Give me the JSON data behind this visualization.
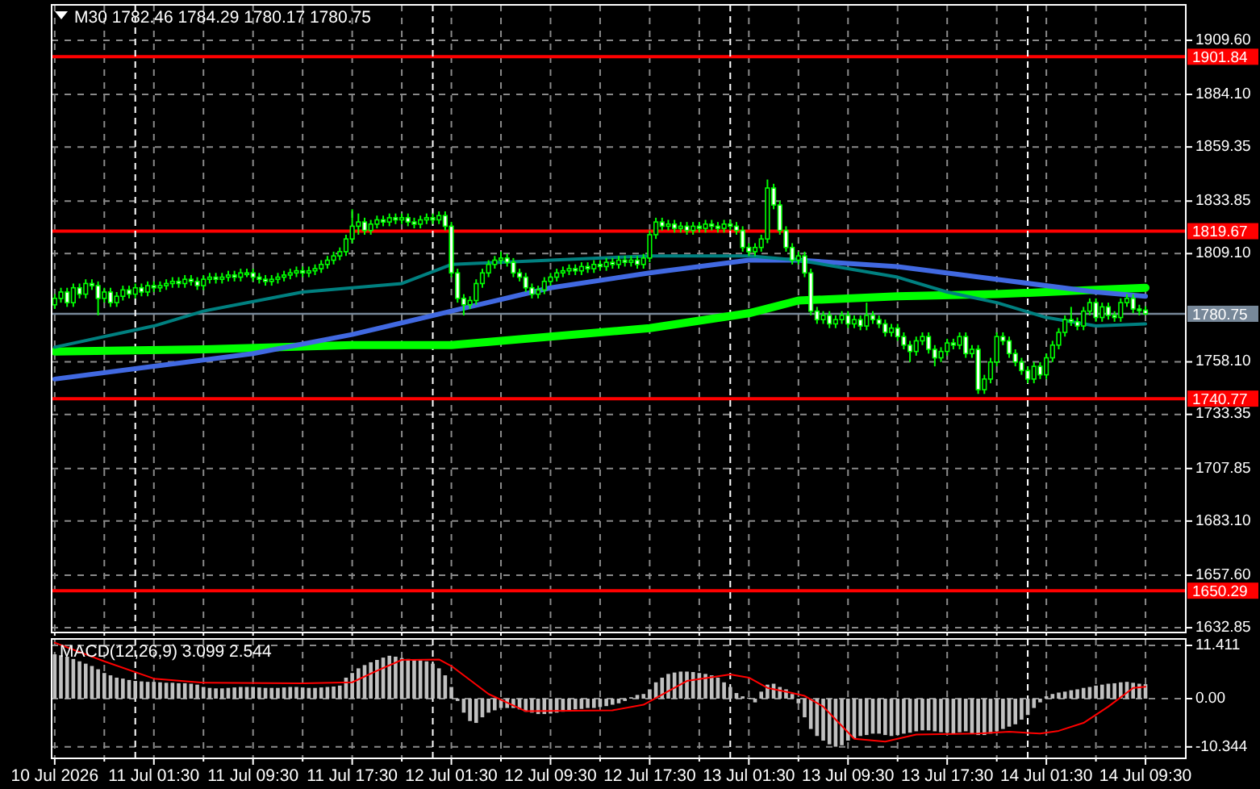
{
  "chart_data": [
    {
      "type": "candlestick",
      "title": "M30  1782.46 1784.29 1780.17 1780.75",
      "color": "#00ff00",
      "x": [
        "2026-07-10T17:30",
        "2026-07-10T18:00",
        "2026-07-10T18:30",
        "2026-07-10T19:00",
        "2026-07-10T19:30",
        "2026-07-10T20:00",
        "2026-07-10T20:30",
        "2026-07-10T21:00",
        "2026-07-10T21:30",
        "2026-07-10T22:00",
        "2026-07-10T22:30",
        "2026-07-10T23:00",
        "2026-07-10T23:30",
        "2026-07-11T00:00",
        "2026-07-11T00:30",
        "2026-07-11T01:00",
        "2026-07-11T01:30",
        "2026-07-11T02:00",
        "2026-07-11T02:30",
        "2026-07-11T03:00",
        "2026-07-11T03:30",
        "2026-07-11T04:00",
        "2026-07-11T04:30",
        "2026-07-11T05:00",
        "2026-07-11T05:30",
        "2026-07-11T06:00",
        "2026-07-11T06:30",
        "2026-07-11T07:00",
        "2026-07-11T07:30",
        "2026-07-11T08:00",
        "2026-07-11T08:30",
        "2026-07-11T09:00",
        "2026-07-11T09:30",
        "2026-07-11T10:00",
        "2026-07-11T10:30",
        "2026-07-11T11:00",
        "2026-07-11T11:30",
        "2026-07-11T12:00",
        "2026-07-11T12:30",
        "2026-07-11T13:00",
        "2026-07-11T13:30",
        "2026-07-11T14:00",
        "2026-07-11T14:30",
        "2026-07-11T15:00",
        "2026-07-11T15:30",
        "2026-07-11T16:00",
        "2026-07-11T16:30",
        "2026-07-11T17:00",
        "2026-07-11T17:30",
        "2026-07-11T18:00",
        "2026-07-11T18:30",
        "2026-07-11T19:00",
        "2026-07-11T19:30",
        "2026-07-11T20:00",
        "2026-07-11T20:30",
        "2026-07-11T21:00",
        "2026-07-11T21:30",
        "2026-07-11T22:00",
        "2026-07-11T22:30",
        "2026-07-11T23:00",
        "2026-07-11T23:30",
        "2026-07-12T00:00",
        "2026-07-12T00:30",
        "2026-07-12T01:00",
        "2026-07-12T01:30",
        "2026-07-12T02:00",
        "2026-07-12T02:30",
        "2026-07-12T03:00",
        "2026-07-12T03:30",
        "2026-07-12T04:00",
        "2026-07-12T04:30",
        "2026-07-12T05:00",
        "2026-07-12T05:30",
        "2026-07-12T06:00",
        "2026-07-12T06:30",
        "2026-07-12T07:00",
        "2026-07-12T07:30",
        "2026-07-12T08:00",
        "2026-07-12T08:30",
        "2026-07-12T09:00",
        "2026-07-12T09:30",
        "2026-07-12T10:00",
        "2026-07-12T10:30",
        "2026-07-12T11:00",
        "2026-07-12T11:30",
        "2026-07-12T12:00",
        "2026-07-12T12:30",
        "2026-07-12T13:00",
        "2026-07-12T13:30",
        "2026-07-12T14:00",
        "2026-07-12T14:30",
        "2026-07-12T15:00",
        "2026-07-12T15:30",
        "2026-07-12T16:00",
        "2026-07-12T16:30",
        "2026-07-12T17:00",
        "2026-07-12T17:30",
        "2026-07-12T18:00",
        "2026-07-12T18:30",
        "2026-07-12T19:00",
        "2026-07-12T19:30",
        "2026-07-12T20:00",
        "2026-07-12T20:30",
        "2026-07-12T21:00",
        "2026-07-12T21:30",
        "2026-07-12T22:00",
        "2026-07-12T22:30",
        "2026-07-12T23:00",
        "2026-07-12T23:30",
        "2026-07-13T00:00",
        "2026-07-13T00:30",
        "2026-07-13T01:00",
        "2026-07-13T01:30",
        "2026-07-13T02:00",
        "2026-07-13T02:30",
        "2026-07-13T03:00",
        "2026-07-13T03:30",
        "2026-07-13T04:00",
        "2026-07-13T04:30",
        "2026-07-13T05:00",
        "2026-07-13T05:30",
        "2026-07-13T06:00",
        "2026-07-13T06:30",
        "2026-07-13T07:00",
        "2026-07-13T07:30",
        "2026-07-13T08:00",
        "2026-07-13T08:30",
        "2026-07-13T09:00",
        "2026-07-13T09:30",
        "2026-07-13T10:00",
        "2026-07-13T10:30",
        "2026-07-13T11:00",
        "2026-07-13T11:30",
        "2026-07-13T12:00",
        "2026-07-13T12:30",
        "2026-07-13T13:00",
        "2026-07-13T13:30",
        "2026-07-13T14:00",
        "2026-07-13T14:30",
        "2026-07-13T15:00",
        "2026-07-13T15:30",
        "2026-07-13T16:00",
        "2026-07-13T16:30",
        "2026-07-13T17:00",
        "2026-07-13T17:30",
        "2026-07-13T18:00",
        "2026-07-13T18:30",
        "2026-07-13T19:00",
        "2026-07-13T19:30",
        "2026-07-13T20:00",
        "2026-07-13T20:30",
        "2026-07-13T21:00",
        "2026-07-13T21:30",
        "2026-07-13T22:00",
        "2026-07-13T22:30",
        "2026-07-13T23:00",
        "2026-07-13T23:30",
        "2026-07-14T00:00",
        "2026-07-14T00:30",
        "2026-07-14T01:00",
        "2026-07-14T01:30",
        "2026-07-14T02:00",
        "2026-07-14T02:30",
        "2026-07-14T03:00",
        "2026-07-14T03:30",
        "2026-07-14T04:00",
        "2026-07-14T04:30",
        "2026-07-14T05:00",
        "2026-07-14T05:30",
        "2026-07-14T06:00",
        "2026-07-14T06:30",
        "2026-07-14T07:00",
        "2026-07-14T07:30",
        "2026-07-14T08:00",
        "2026-07-14T08:30",
        "2026-07-14T09:00",
        "2026-07-14T09:30"
      ],
      "ohlc": [
        [
          1785,
          1790,
          1783,
          1788
        ],
        [
          1788,
          1793,
          1786,
          1791
        ],
        [
          1791,
          1793,
          1784,
          1786
        ],
        [
          1786,
          1795,
          1784,
          1793
        ],
        [
          1793,
          1795,
          1788,
          1790
        ],
        [
          1790,
          1797,
          1788,
          1795
        ],
        [
          1795,
          1797,
          1792,
          1794
        ],
        [
          1794,
          1796,
          1780,
          1788
        ],
        [
          1788,
          1793,
          1786,
          1791
        ],
        [
          1791,
          1793,
          1784,
          1786
        ],
        [
          1786,
          1791,
          1784,
          1789
        ],
        [
          1789,
          1794,
          1787,
          1792
        ],
        [
          1792,
          1794,
          1788,
          1790
        ],
        [
          1790,
          1795,
          1788,
          1793
        ],
        [
          1793,
          1795,
          1789,
          1791
        ],
        [
          1791,
          1796,
          1789,
          1794
        ],
        [
          1794,
          1796,
          1791,
          1793
        ],
        [
          1793,
          1796,
          1791,
          1794
        ],
        [
          1794,
          1797,
          1792,
          1795
        ],
        [
          1795,
          1798,
          1793,
          1796
        ],
        [
          1796,
          1798,
          1793,
          1795
        ],
        [
          1795,
          1799,
          1793,
          1797
        ],
        [
          1797,
          1799,
          1794,
          1796
        ],
        [
          1796,
          1798,
          1792,
          1794
        ],
        [
          1794,
          1799,
          1792,
          1797
        ],
        [
          1797,
          1800,
          1795,
          1798
        ],
        [
          1798,
          1800,
          1795,
          1797
        ],
        [
          1797,
          1800,
          1795,
          1798
        ],
        [
          1798,
          1801,
          1796,
          1799
        ],
        [
          1799,
          1801,
          1796,
          1798
        ],
        [
          1798,
          1802,
          1796,
          1800
        ],
        [
          1800,
          1802,
          1798,
          1800
        ],
        [
          1800,
          1802,
          1796,
          1798
        ],
        [
          1798,
          1800,
          1795,
          1797
        ],
        [
          1797,
          1799,
          1794,
          1796
        ],
        [
          1796,
          1799,
          1794,
          1797
        ],
        [
          1797,
          1800,
          1795,
          1798
        ],
        [
          1798,
          1801,
          1796,
          1799
        ],
        [
          1799,
          1802,
          1797,
          1800
        ],
        [
          1800,
          1803,
          1798,
          1801
        ],
        [
          1801,
          1803,
          1798,
          1800
        ],
        [
          1800,
          1803,
          1798,
          1801
        ],
        [
          1801,
          1804,
          1799,
          1802
        ],
        [
          1802,
          1806,
          1800,
          1804
        ],
        [
          1804,
          1808,
          1802,
          1806
        ],
        [
          1806,
          1810,
          1804,
          1808
        ],
        [
          1808,
          1812,
          1806,
          1810
        ],
        [
          1810,
          1818,
          1808,
          1816
        ],
        [
          1816,
          1830,
          1814,
          1822
        ],
        [
          1822,
          1828,
          1818,
          1824
        ],
        [
          1824,
          1826,
          1818,
          1820
        ],
        [
          1820,
          1825,
          1818,
          1823
        ],
        [
          1823,
          1827,
          1821,
          1825
        ],
        [
          1825,
          1827,
          1822,
          1824
        ],
        [
          1824,
          1828,
          1822,
          1826
        ],
        [
          1826,
          1828,
          1823,
          1825
        ],
        [
          1825,
          1828,
          1823,
          1826
        ],
        [
          1826,
          1828,
          1822,
          1824
        ],
        [
          1824,
          1826,
          1821,
          1823
        ],
        [
          1823,
          1827,
          1821,
          1825
        ],
        [
          1825,
          1828,
          1823,
          1826
        ],
        [
          1826,
          1828,
          1823,
          1825
        ],
        [
          1825,
          1829,
          1823,
          1827
        ],
        [
          1827,
          1829,
          1820,
          1822
        ],
        [
          1822,
          1824,
          1798,
          1800
        ],
        [
          1800,
          1802,
          1786,
          1788
        ],
        [
          1788,
          1790,
          1780,
          1785
        ],
        [
          1785,
          1789,
          1783,
          1787
        ],
        [
          1787,
          1797,
          1785,
          1795
        ],
        [
          1795,
          1802,
          1793,
          1800
        ],
        [
          1800,
          1806,
          1798,
          1804
        ],
        [
          1804,
          1808,
          1802,
          1806
        ],
        [
          1806,
          1810,
          1804,
          1807
        ],
        [
          1807,
          1809,
          1803,
          1805
        ],
        [
          1805,
          1807,
          1798,
          1800
        ],
        [
          1800,
          1802,
          1796,
          1798
        ],
        [
          1798,
          1800,
          1791,
          1793
        ],
        [
          1793,
          1795,
          1788,
          1790
        ],
        [
          1790,
          1794,
          1788,
          1792
        ],
        [
          1792,
          1798,
          1790,
          1796
        ],
        [
          1796,
          1800,
          1794,
          1798
        ],
        [
          1798,
          1802,
          1796,
          1800
        ],
        [
          1800,
          1803,
          1798,
          1801
        ],
        [
          1801,
          1804,
          1799,
          1802
        ],
        [
          1802,
          1804,
          1799,
          1801
        ],
        [
          1801,
          1805,
          1799,
          1803
        ],
        [
          1803,
          1805,
          1800,
          1802
        ],
        [
          1802,
          1806,
          1800,
          1804
        ],
        [
          1804,
          1806,
          1801,
          1803
        ],
        [
          1803,
          1807,
          1801,
          1805
        ],
        [
          1805,
          1807,
          1802,
          1804
        ],
        [
          1804,
          1808,
          1802,
          1806
        ],
        [
          1806,
          1808,
          1803,
          1805
        ],
        [
          1805,
          1808,
          1803,
          1806
        ],
        [
          1806,
          1808,
          1802,
          1804
        ],
        [
          1804,
          1809,
          1802,
          1807
        ],
        [
          1807,
          1820,
          1805,
          1818
        ],
        [
          1818,
          1826,
          1816,
          1824
        ],
        [
          1824,
          1826,
          1820,
          1822
        ],
        [
          1822,
          1825,
          1820,
          1823
        ],
        [
          1823,
          1825,
          1819,
          1821
        ],
        [
          1821,
          1824,
          1819,
          1822
        ],
        [
          1822,
          1824,
          1818,
          1820
        ],
        [
          1820,
          1824,
          1818,
          1822
        ],
        [
          1822,
          1824,
          1819,
          1821
        ],
        [
          1821,
          1825,
          1819,
          1823
        ],
        [
          1823,
          1825,
          1820,
          1822
        ],
        [
          1822,
          1824,
          1819,
          1821
        ],
        [
          1821,
          1825,
          1819,
          1823
        ],
        [
          1823,
          1825,
          1820,
          1822
        ],
        [
          1822,
          1824,
          1818,
          1820
        ],
        [
          1820,
          1822,
          1810,
          1812
        ],
        [
          1812,
          1814,
          1808,
          1810
        ],
        [
          1810,
          1814,
          1808,
          1812
        ],
        [
          1812,
          1818,
          1810,
          1816
        ],
        [
          1816,
          1844,
          1814,
          1840
        ],
        [
          1840,
          1842,
          1830,
          1832
        ],
        [
          1832,
          1834,
          1818,
          1820
        ],
        [
          1820,
          1822,
          1810,
          1812
        ],
        [
          1812,
          1814,
          1804,
          1806
        ],
        [
          1806,
          1810,
          1804,
          1808
        ],
        [
          1808,
          1810,
          1798,
          1800
        ],
        [
          1800,
          1802,
          1780,
          1782
        ],
        [
          1782,
          1784,
          1776,
          1778
        ],
        [
          1778,
          1782,
          1776,
          1780
        ],
        [
          1780,
          1782,
          1774,
          1776
        ],
        [
          1776,
          1780,
          1774,
          1778
        ],
        [
          1778,
          1782,
          1776,
          1780
        ],
        [
          1780,
          1782,
          1774,
          1776
        ],
        [
          1776,
          1780,
          1774,
          1778
        ],
        [
          1778,
          1780,
          1773,
          1775
        ],
        [
          1775,
          1786,
          1773,
          1780
        ],
        [
          1780,
          1782,
          1776,
          1778
        ],
        [
          1778,
          1780,
          1774,
          1776
        ],
        [
          1776,
          1778,
          1770,
          1772
        ],
        [
          1772,
          1776,
          1770,
          1774
        ],
        [
          1774,
          1776,
          1768,
          1770
        ],
        [
          1770,
          1772,
          1764,
          1766
        ],
        [
          1766,
          1768,
          1758,
          1763
        ],
        [
          1763,
          1770,
          1761,
          1768
        ],
        [
          1768,
          1772,
          1766,
          1770
        ],
        [
          1770,
          1772,
          1762,
          1764
        ],
        [
          1764,
          1766,
          1756,
          1760
        ],
        [
          1760,
          1765,
          1758,
          1763
        ],
        [
          1763,
          1769,
          1761,
          1767
        ],
        [
          1767,
          1769,
          1764,
          1766
        ],
        [
          1766,
          1772,
          1764,
          1770
        ],
        [
          1770,
          1772,
          1760,
          1762
        ],
        [
          1762,
          1766,
          1760,
          1764
        ],
        [
          1764,
          1766,
          1743,
          1745
        ],
        [
          1745,
          1752,
          1743,
          1750
        ],
        [
          1750,
          1760,
          1748,
          1758
        ],
        [
          1758,
          1772,
          1756,
          1770
        ],
        [
          1770,
          1772,
          1766,
          1768
        ],
        [
          1768,
          1770,
          1760,
          1762
        ],
        [
          1762,
          1764,
          1756,
          1758
        ],
        [
          1758,
          1760,
          1752,
          1754
        ],
        [
          1754,
          1756,
          1748,
          1750
        ],
        [
          1750,
          1758,
          1748,
          1756
        ],
        [
          1756,
          1758,
          1750,
          1752
        ],
        [
          1752,
          1762,
          1750,
          1760
        ],
        [
          1760,
          1768,
          1758,
          1766
        ],
        [
          1766,
          1774,
          1764,
          1772
        ],
        [
          1772,
          1780,
          1770,
          1778
        ],
        [
          1778,
          1784,
          1775,
          1777
        ],
        [
          1777,
          1779,
          1773,
          1775
        ],
        [
          1775,
          1784,
          1773,
          1782
        ],
        [
          1782,
          1788,
          1780,
          1786
        ],
        [
          1786,
          1788,
          1777,
          1779
        ],
        [
          1779,
          1786,
          1777,
          1784
        ],
        [
          1784,
          1786,
          1778,
          1780
        ],
        [
          1780,
          1782,
          1777,
          1779
        ],
        [
          1779,
          1788,
          1777,
          1786
        ],
        [
          1786,
          1790,
          1784,
          1788
        ],
        [
          1788,
          1790,
          1781,
          1783
        ],
        [
          1783,
          1785,
          1780,
          1782.46
        ],
        [
          1782.46,
          1784.29,
          1780.17,
          1780.75
        ]
      ],
      "series": [
        {
          "type": "line",
          "color": "#00ff00",
          "x": [
            "2026-07-10T17:30",
            "2026-07-11T05:30",
            "2026-07-11T17:30",
            "2026-07-12T01:30",
            "2026-07-12T09:30",
            "2026-07-12T17:30",
            "2026-07-13T01:30",
            "2026-07-13T05:30",
            "2026-07-13T13:30",
            "2026-07-13T21:30",
            "2026-07-14T05:30",
            "2026-07-14T09:30"
          ],
          "values": [
            1763,
            1764,
            1766,
            1766,
            1770,
            1774,
            1781,
            1787,
            1789,
            1790,
            1792,
            1793
          ]
        },
        {
          "type": "line",
          "color": "#4169e1",
          "x": [
            "2026-07-10T17:30",
            "2026-07-11T01:30",
            "2026-07-11T09:30",
            "2026-07-11T17:30",
            "2026-07-12T01:30",
            "2026-07-12T09:30",
            "2026-07-12T17:30",
            "2026-07-13T01:30",
            "2026-07-13T05:30",
            "2026-07-13T13:30",
            "2026-07-13T21:30",
            "2026-07-14T05:30",
            "2026-07-14T09:30"
          ],
          "values": [
            1750,
            1756,
            1762,
            1771,
            1782,
            1793,
            1800,
            1806,
            1806,
            1803,
            1797,
            1791,
            1789
          ]
        },
        {
          "type": "line",
          "color": "#008080",
          "x": [
            "2026-07-10T17:30",
            "2026-07-11T01:30",
            "2026-07-11T05:30",
            "2026-07-11T13:30",
            "2026-07-11T21:30",
            "2026-07-12T01:30",
            "2026-07-12T09:30",
            "2026-07-12T17:30",
            "2026-07-13T01:30",
            "2026-07-13T05:30",
            "2026-07-13T09:30",
            "2026-07-13T13:30",
            "2026-07-13T17:30",
            "2026-07-13T21:30",
            "2026-07-14T01:30",
            "2026-07-14T05:30",
            "2026-07-14T09:30"
          ],
          "values": [
            1765,
            1775,
            1782,
            1791,
            1795,
            1804,
            1806,
            1808,
            1808,
            1806,
            1802,
            1798,
            1791,
            1786,
            1779,
            1775,
            1776
          ]
        }
      ],
      "xlim": [
        "2026-07-10T17:15",
        "2026-07-14T12:45"
      ],
      "xticks": [
        {
          "value": "2026-07-10T17:30",
          "label": null
        },
        {
          "value": "2026-07-10T21:30",
          "label": null
        },
        {
          "value": "2026-07-11T01:30",
          "label": null
        },
        {
          "value": "2026-07-11T05:30",
          "label": null
        },
        {
          "value": "2026-07-11T09:30",
          "label": null
        },
        {
          "value": "2026-07-11T13:30",
          "label": null
        },
        {
          "value": "2026-07-11T17:30",
          "label": null
        },
        {
          "value": "2026-07-11T21:30",
          "label": null
        },
        {
          "value": "2026-07-12T01:30",
          "label": null
        },
        {
          "value": "2026-07-12T05:30",
          "label": null
        },
        {
          "value": "2026-07-12T09:30",
          "label": null
        },
        {
          "value": "2026-07-12T13:30",
          "label": null
        },
        {
          "value": "2026-07-12T17:30",
          "label": null
        },
        {
          "value": "2026-07-12T21:30",
          "label": null
        },
        {
          "value": "2026-07-13T01:30",
          "label": null
        },
        {
          "value": "2026-07-13T05:30",
          "label": null
        },
        {
          "value": "2026-07-13T09:30",
          "label": null
        },
        {
          "value": "2026-07-13T13:30",
          "label": null
        },
        {
          "value": "2026-07-13T17:30",
          "label": null
        },
        {
          "value": "2026-07-13T21:30",
          "label": null
        },
        {
          "value": "2026-07-14T01:30",
          "label": null
        },
        {
          "value": "2026-07-14T05:30",
          "label": null
        },
        {
          "value": "2026-07-14T09:30",
          "label": null
        }
      ],
      "ylim": [
        1630.6,
        1926.3
      ],
      "yticks": [
        {
          "value": 1909.6,
          "label": "1909.60"
        },
        {
          "value": 1884.1,
          "label": "1884.10"
        },
        1859.35,
        1833.85,
        {
          "value": 1809.1,
          "label": "1809.10"
        },
        {
          "value": 1758.1,
          "label": "1758.10"
        },
        1733.35,
        1707.85,
        {
          "value": 1683.1,
          "label": "1683.10"
        },
        {
          "value": 1657.6,
          "label": "1657.60"
        },
        1632.85
      ],
      "ref_lines": [
        {
          "axis": "y",
          "value": 1901.84,
          "label": "1901.84",
          "color": "#ff0000"
        },
        {
          "axis": "y",
          "value": 1819.67,
          "label": "1819.67",
          "color": "#ff0000"
        },
        {
          "axis": "y",
          "value": 1740.77,
          "label": "1740.77",
          "color": "#ff0000"
        },
        {
          "axis": "y",
          "value": 1650.29,
          "label": "1650.29",
          "color": "#ff0000"
        },
        {
          "axis": "y",
          "value": 1780.75,
          "label": "1780.75",
          "color": "#778899"
        },
        {
          "axis": "x",
          "value": "2026-07-11T00:00",
          "color": "#ffffff",
          "line_style": "dashed"
        },
        {
          "axis": "x",
          "value": "2026-07-12T00:00",
          "color": "#ffffff",
          "line_style": "dashed"
        },
        {
          "axis": "x",
          "value": "2026-07-13T00:00",
          "color": "#ffffff",
          "line_style": "dashed"
        },
        {
          "axis": "x",
          "value": "2026-07-14T00:00",
          "color": "#ffffff",
          "line_style": "dashed"
        }
      ],
      "grid": true,
      "tick_labels": "y"
    },
    {
      "type": "bar",
      "title": "MACD(12,26,9) 3.099 2.544",
      "x": [
        "2026-07-10T17:30",
        "2026-07-10T18:00",
        "2026-07-10T18:30",
        "2026-07-10T19:00",
        "2026-07-10T19:30",
        "2026-07-10T20:00",
        "2026-07-10T20:30",
        "2026-07-10T21:00",
        "2026-07-10T21:30",
        "2026-07-10T22:00",
        "2026-07-10T22:30",
        "2026-07-10T23:00",
        "2026-07-10T23:30",
        "2026-07-11T00:00",
        "2026-07-11T00:30",
        "2026-07-11T01:00",
        "2026-07-11T01:30",
        "2026-07-11T02:00",
        "2026-07-11T02:30",
        "2026-07-11T03:00",
        "2026-07-11T03:30",
        "2026-07-11T04:00",
        "2026-07-11T04:30",
        "2026-07-11T05:00",
        "2026-07-11T05:30",
        "2026-07-11T06:00",
        "2026-07-11T06:30",
        "2026-07-11T07:00",
        "2026-07-11T07:30",
        "2026-07-11T08:00",
        "2026-07-11T08:30",
        "2026-07-11T09:00",
        "2026-07-11T09:30",
        "2026-07-11T10:00",
        "2026-07-11T10:30",
        "2026-07-11T11:00",
        "2026-07-11T11:30",
        "2026-07-11T12:00",
        "2026-07-11T12:30",
        "2026-07-11T13:00",
        "2026-07-11T13:30",
        "2026-07-11T14:00",
        "2026-07-11T14:30",
        "2026-07-11T15:00",
        "2026-07-11T15:30",
        "2026-07-11T16:00",
        "2026-07-11T16:30",
        "2026-07-11T17:00",
        "2026-07-11T17:30",
        "2026-07-11T18:00",
        "2026-07-11T18:30",
        "2026-07-11T19:00",
        "2026-07-11T19:30",
        "2026-07-11T20:00",
        "2026-07-11T20:30",
        "2026-07-11T21:00",
        "2026-07-11T21:30",
        "2026-07-11T22:00",
        "2026-07-11T22:30",
        "2026-07-11T23:00",
        "2026-07-11T23:30",
        "2026-07-12T00:00",
        "2026-07-12T00:30",
        "2026-07-12T01:00",
        "2026-07-12T01:30",
        "2026-07-12T02:00",
        "2026-07-12T02:30",
        "2026-07-12T03:00",
        "2026-07-12T03:30",
        "2026-07-12T04:00",
        "2026-07-12T04:30",
        "2026-07-12T05:00",
        "2026-07-12T05:30",
        "2026-07-12T06:00",
        "2026-07-12T06:30",
        "2026-07-12T07:00",
        "2026-07-12T07:30",
        "2026-07-12T08:00",
        "2026-07-12T08:30",
        "2026-07-12T09:00",
        "2026-07-12T09:30",
        "2026-07-12T10:00",
        "2026-07-12T10:30",
        "2026-07-12T11:00",
        "2026-07-12T11:30",
        "2026-07-12T12:00",
        "2026-07-12T12:30",
        "2026-07-12T13:00",
        "2026-07-12T13:30",
        "2026-07-12T14:00",
        "2026-07-12T14:30",
        "2026-07-12T15:00",
        "2026-07-12T15:30",
        "2026-07-12T16:00",
        "2026-07-12T16:30",
        "2026-07-12T17:00",
        "2026-07-12T17:30",
        "2026-07-12T18:00",
        "2026-07-12T18:30",
        "2026-07-12T19:00",
        "2026-07-12T19:30",
        "2026-07-12T20:00",
        "2026-07-12T20:30",
        "2026-07-12T21:00",
        "2026-07-12T21:30",
        "2026-07-12T22:00",
        "2026-07-12T22:30",
        "2026-07-12T23:00",
        "2026-07-12T23:30",
        "2026-07-13T00:00",
        "2026-07-13T00:30",
        "2026-07-13T01:00",
        "2026-07-13T01:30",
        "2026-07-13T02:00",
        "2026-07-13T02:30",
        "2026-07-13T03:00",
        "2026-07-13T03:30",
        "2026-07-13T04:00",
        "2026-07-13T04:30",
        "2026-07-13T05:00",
        "2026-07-13T05:30",
        "2026-07-13T06:00",
        "2026-07-13T06:30",
        "2026-07-13T07:00",
        "2026-07-13T07:30",
        "2026-07-13T08:00",
        "2026-07-13T08:30",
        "2026-07-13T09:00",
        "2026-07-13T09:30",
        "2026-07-13T10:00",
        "2026-07-13T10:30",
        "2026-07-13T11:00",
        "2026-07-13T11:30",
        "2026-07-13T12:00",
        "2026-07-13T12:30",
        "2026-07-13T13:00",
        "2026-07-13T13:30",
        "2026-07-13T14:00",
        "2026-07-13T14:30",
        "2026-07-13T15:00",
        "2026-07-13T15:30",
        "2026-07-13T16:00",
        "2026-07-13T16:30",
        "2026-07-13T17:00",
        "2026-07-13T17:30",
        "2026-07-13T18:00",
        "2026-07-13T18:30",
        "2026-07-13T19:00",
        "2026-07-13T19:30",
        "2026-07-13T20:00",
        "2026-07-13T20:30",
        "2026-07-13T21:00",
        "2026-07-13T21:30",
        "2026-07-13T22:00",
        "2026-07-13T22:30",
        "2026-07-13T23:00",
        "2026-07-13T23:30",
        "2026-07-14T00:00",
        "2026-07-14T00:30",
        "2026-07-14T01:00",
        "2026-07-14T01:30",
        "2026-07-14T02:00",
        "2026-07-14T02:30",
        "2026-07-14T03:00",
        "2026-07-14T03:30",
        "2026-07-14T04:00",
        "2026-07-14T04:30",
        "2026-07-14T05:00",
        "2026-07-14T05:30",
        "2026-07-14T06:00",
        "2026-07-14T06:30",
        "2026-07-14T07:00",
        "2026-07-14T07:30",
        "2026-07-14T08:00",
        "2026-07-14T08:30",
        "2026-07-14T09:00",
        "2026-07-14T09:30"
      ],
      "series": [
        {
          "type": "bar",
          "color": "#c0c0c0",
          "values": [
            9.5,
            9.3,
            9.0,
            8.5,
            8.0,
            7.5,
            7.0,
            6.3,
            5.5,
            5.0,
            4.5,
            4.3,
            4.0,
            3.8,
            3.7,
            3.6,
            3.6,
            3.5,
            3.4,
            3.4,
            3.3,
            3.3,
            3.2,
            3.0,
            2.5,
            2.3,
            2.2,
            2.2,
            2.3,
            2.4,
            2.5,
            2.5,
            2.5,
            2.4,
            2.3,
            2.3,
            2.3,
            2.4,
            2.5,
            2.5,
            2.4,
            2.3,
            2.3,
            2.4,
            2.5,
            2.6,
            2.8,
            4.5,
            5.5,
            6.5,
            7.2,
            7.8,
            8.3,
            8.8,
            9.2,
            9.0,
            8.7,
            8.5,
            8.3,
            8.2,
            8.0,
            7.5,
            6.5,
            5.0,
            2.5,
            -0.5,
            -3,
            -4.8,
            -5.2,
            -4.0,
            -3.0,
            -2.5,
            -2.0,
            -2.0,
            -2.0,
            -2.3,
            -2.8,
            -3.0,
            -3.3,
            -3.3,
            -3.2,
            -3.0,
            -2.8,
            -2.5,
            -2.3,
            -2.2,
            -2.0,
            -2.0,
            -1.8,
            -1.6,
            -1.3,
            -1.0,
            -0.5,
            0.3,
            0.8,
            1.0,
            2.0,
            3.5,
            4.5,
            5.3,
            5.6,
            5.8,
            5.8,
            5.7,
            5.5,
            5.3,
            5.0,
            4.5,
            3.5,
            2.5,
            1.2,
            0.5,
            0.2,
            -0.8,
            1.5,
            3.0,
            3.2,
            2.5,
            2.0,
            1.0,
            -1.0,
            -4.0,
            -6.5,
            -8.0,
            -9.0,
            -9.8,
            -10.3,
            -10.0,
            -9.0,
            -8.5,
            -8.0,
            -7.8,
            -7.5,
            -7.5,
            -7.8,
            -8.0,
            -7.8,
            -7.5,
            -7.3,
            -7.0,
            -6.8,
            -6.8,
            -7.0,
            -7.2,
            -7.3,
            -7.5,
            -7.2,
            -7.0,
            -7.5,
            -7.8,
            -7.8,
            -7.5,
            -7.0,
            -6.5,
            -6.0,
            -5.5,
            -4.5,
            -3.5,
            -2.0,
            -0.8,
            0.5,
            1.0,
            1.3,
            1.5,
            1.8,
            2.0,
            2.3,
            2.5,
            2.8,
            3.0,
            3.2,
            3.3,
            3.5,
            3.6,
            3.4,
            3.2,
            3.099
          ]
        },
        {
          "type": "line",
          "color": "#ff0000",
          "x": [
            "2026-07-10T17:30",
            "2026-07-10T21:30",
            "2026-07-11T01:30",
            "2026-07-11T05:30",
            "2026-07-11T13:30",
            "2026-07-11T17:30",
            "2026-07-11T19:30",
            "2026-07-11T21:30",
            "2026-07-12T00:30",
            "2026-07-12T01:30",
            "2026-07-12T04:30",
            "2026-07-12T07:30",
            "2026-07-12T14:30",
            "2026-07-12T17:00",
            "2026-07-12T20:30",
            "2026-07-13T00:00",
            "2026-07-13T01:30",
            "2026-07-13T03:00",
            "2026-07-13T05:00",
            "2026-07-13T06:00",
            "2026-07-13T07:30",
            "2026-07-13T10:00",
            "2026-07-13T12:30",
            "2026-07-13T15:00",
            "2026-07-13T20:00",
            "2026-07-13T22:30",
            "2026-07-14T01:00",
            "2026-07-14T02:30",
            "2026-07-14T04:30",
            "2026-07-14T06:30",
            "2026-07-14T08:30",
            "2026-07-14T09:30"
          ],
          "values": [
            12.0,
            8.0,
            4.3,
            3.4,
            3.3,
            3.5,
            6.0,
            8.3,
            8.4,
            7.0,
            1.0,
            -2.7,
            -2.5,
            -1.3,
            3.8,
            5.2,
            4.5,
            2.3,
            1.2,
            0.6,
            -1.7,
            -8.6,
            -9.2,
            -7.7,
            -7.5,
            -7.1,
            -7.5,
            -6.9,
            -5.2,
            -1.7,
            2.3,
            2.544
          ]
        }
      ],
      "xlim": [
        "2026-07-10T17:15",
        "2026-07-14T12:45"
      ],
      "xticks": [
        {
          "value": "2026-07-10T17:30",
          "label": "10 Jul 2026"
        },
        {
          "value": "2026-07-10T21:30",
          "label": null
        },
        {
          "value": "2026-07-11T01:30",
          "label": "11 Jul 01:30"
        },
        {
          "value": "2026-07-11T05:30",
          "label": null
        },
        {
          "value": "2026-07-11T09:30",
          "label": "11 Jul 09:30"
        },
        {
          "value": "2026-07-11T13:30",
          "label": null
        },
        {
          "value": "2026-07-11T17:30",
          "label": "11 Jul 17:30"
        },
        {
          "value": "2026-07-11T21:30",
          "label": null
        },
        {
          "value": "2026-07-12T01:30",
          "label": "12 Jul 01:30"
        },
        {
          "value": "2026-07-12T05:30",
          "label": null
        },
        {
          "value": "2026-07-12T09:30",
          "label": "12 Jul 09:30"
        },
        {
          "value": "2026-07-12T13:30",
          "label": null
        },
        {
          "value": "2026-07-12T17:30",
          "label": "12 Jul 17:30"
        },
        {
          "value": "2026-07-12T21:30",
          "label": null
        },
        {
          "value": "2026-07-13T01:30",
          "label": "13 Jul 01:30"
        },
        {
          "value": "2026-07-13T05:30",
          "label": null
        },
        {
          "value": "2026-07-13T09:30",
          "label": "13 Jul 09:30"
        },
        {
          "value": "2026-07-13T13:30",
          "label": null
        },
        {
          "value": "2026-07-13T17:30",
          "label": "13 Jul 17:30"
        },
        {
          "value": "2026-07-13T21:30",
          "label": null
        },
        {
          "value": "2026-07-14T01:30",
          "label": "14 Jul 01:30"
        },
        {
          "value": "2026-07-14T05:30",
          "label": null
        },
        {
          "value": "2026-07-14T09:30",
          "label": "14 Jul 09:30"
        }
      ],
      "ylim": [
        -12.8,
        12.8
      ],
      "yticks": [
        11.411,
        {
          "value": 0,
          "label": "0.00"
        },
        -10.344
      ],
      "ref_lines": [
        {
          "axis": "x",
          "value": "2026-07-11T00:00",
          "color": "#ffffff",
          "line_style": "dashed"
        },
        {
          "axis": "x",
          "value": "2026-07-12T00:00",
          "color": "#ffffff",
          "line_style": "dashed"
        },
        {
          "axis": "x",
          "value": "2026-07-13T00:00",
          "color": "#ffffff",
          "line_style": "dashed"
        },
        {
          "axis": "x",
          "value": "2026-07-14T00:00",
          "color": "#ffffff",
          "line_style": "dashed"
        }
      ],
      "grid": true
    }
  ]
}
